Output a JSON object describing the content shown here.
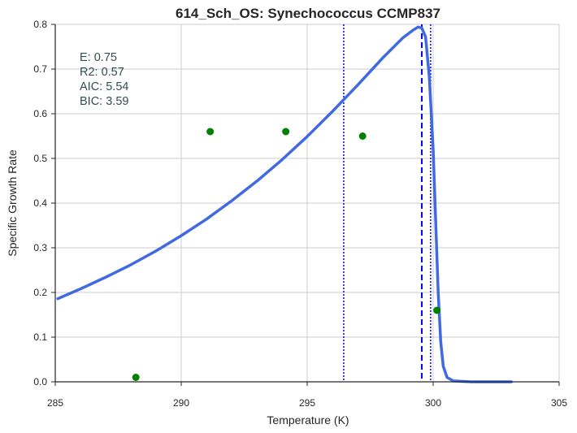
{
  "chart_data": {
    "type": "scatter",
    "title": "614_Sch_OS: Synechococcus CCMP837",
    "xlabel": "Temperature (K)",
    "ylabel": "Specific Growth Rate",
    "xlim": [
      285,
      305
    ],
    "ylim": [
      0,
      0.8
    ],
    "xticks": [
      285,
      290,
      295,
      300,
      305
    ],
    "yticks": [
      0.0,
      0.1,
      0.2,
      0.3,
      0.4,
      0.5,
      0.6,
      0.7,
      0.8
    ],
    "grid": true,
    "points": [
      {
        "x": 288.2,
        "y": 0.01
      },
      {
        "x": 291.15,
        "y": 0.56
      },
      {
        "x": 294.15,
        "y": 0.56
      },
      {
        "x": 297.2,
        "y": 0.55
      },
      {
        "x": 300.15,
        "y": 0.16
      }
    ],
    "fit_curve": [
      [
        285.1,
        0.186
      ],
      [
        286.0,
        0.208
      ],
      [
        287.0,
        0.234
      ],
      [
        288.0,
        0.262
      ],
      [
        289.0,
        0.293
      ],
      [
        290.0,
        0.327
      ],
      [
        291.0,
        0.364
      ],
      [
        292.0,
        0.405
      ],
      [
        293.0,
        0.449
      ],
      [
        294.0,
        0.497
      ],
      [
        295.0,
        0.549
      ],
      [
        296.0,
        0.605
      ],
      [
        297.0,
        0.664
      ],
      [
        298.0,
        0.725
      ],
      [
        298.8,
        0.77
      ],
      [
        299.2,
        0.787
      ],
      [
        299.4,
        0.794
      ],
      [
        299.55,
        0.792
      ],
      [
        299.7,
        0.772
      ],
      [
        299.85,
        0.68
      ],
      [
        300.0,
        0.52
      ],
      [
        300.1,
        0.36
      ],
      [
        300.2,
        0.2
      ],
      [
        300.3,
        0.09
      ],
      [
        300.4,
        0.035
      ],
      [
        300.55,
        0.01
      ],
      [
        300.8,
        0.002
      ],
      [
        301.5,
        0.0
      ],
      [
        303.1,
        0.0
      ]
    ],
    "vlines": [
      {
        "x": 296.45,
        "style": "dotted"
      },
      {
        "x": 299.55,
        "style": "dashed"
      },
      {
        "x": 299.9,
        "style": "dotted"
      }
    ],
    "colors": {
      "curve": "#4169e1",
      "points": "#008000",
      "vlines": "#0000ff",
      "grid": "#cccccc",
      "axis": "#262626",
      "stats_text": "#2f4f4f"
    },
    "annotations": {
      "E": "E:  0.75",
      "R2": "R2:  0.57",
      "AIC": "AIC: 5.54",
      "BIC": "BIC: 3.59"
    }
  }
}
